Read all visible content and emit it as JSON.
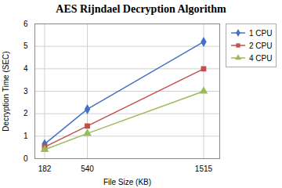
{
  "chart_data": {
    "type": "line",
    "title": "AES Rijndael Decryption Algorithm",
    "xlabel": "File Size (KB)",
    "ylabel": "Decryption Time (SEC)",
    "x": [
      182,
      540,
      1515
    ],
    "series": [
      {
        "name": "1 CPU",
        "color": "#4472C4",
        "marker": "diamond",
        "values": [
          0.65,
          2.2,
          5.2
        ]
      },
      {
        "name": "2 CPU",
        "color": "#C0504D",
        "marker": "square",
        "values": [
          0.52,
          1.45,
          4.0
        ]
      },
      {
        "name": "4 CPU",
        "color": "#9BBB59",
        "marker": "triangle",
        "values": [
          0.4,
          1.12,
          3.0
        ]
      }
    ],
    "xlim": [
      100,
      1650
    ],
    "xticks": [
      182,
      540,
      1515
    ],
    "ylim": [
      0,
      6
    ],
    "yticks": [
      0,
      1,
      2,
      3,
      4,
      5,
      6
    ],
    "grid": true,
    "legend": "right"
  }
}
